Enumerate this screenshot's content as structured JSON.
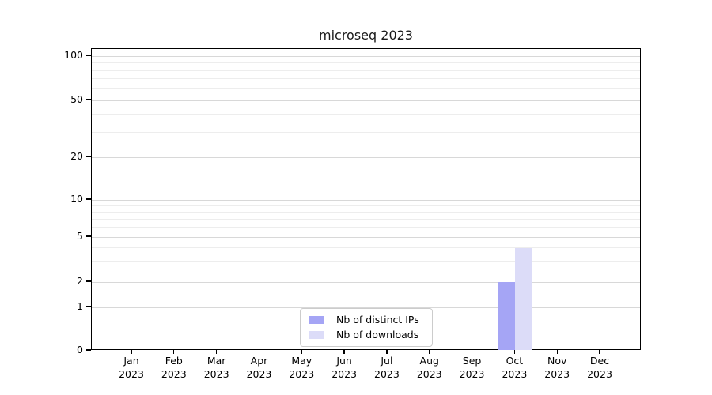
{
  "chart_data": {
    "type": "bar",
    "title": "microseq 2023",
    "categories": [
      "Jan",
      "Feb",
      "Mar",
      "Apr",
      "May",
      "Jun",
      "Jul",
      "Aug",
      "Sep",
      "Oct",
      "Nov",
      "Dec"
    ],
    "category_sublabel": "2023",
    "series": [
      {
        "name": "Nb of distinct IPs",
        "color": "#a5a5f5",
        "values": [
          0,
          0,
          0,
          0,
          0,
          0,
          0,
          0,
          0,
          2,
          0,
          0
        ]
      },
      {
        "name": "Nb of downloads",
        "color": "#dcdcf8",
        "values": [
          0,
          0,
          0,
          0,
          0,
          0,
          0,
          0,
          0,
          4,
          0,
          0
        ]
      }
    ],
    "y_axis": {
      "scale": "symlog",
      "ticks": [
        0,
        1,
        2,
        5,
        10,
        20,
        50,
        100
      ],
      "minor_gridlines": [
        3,
        4,
        6,
        7,
        8,
        9,
        30,
        40,
        60,
        70,
        80,
        90
      ],
      "range": [
        0,
        110
      ]
    },
    "grid": true,
    "legend_position": "bottom-center-inside",
    "colors": {
      "major_grid": "#d8d8d8",
      "minor_grid": "#ededed",
      "axis": "#000000",
      "background": "#ffffff",
      "text": "#000000"
    }
  }
}
